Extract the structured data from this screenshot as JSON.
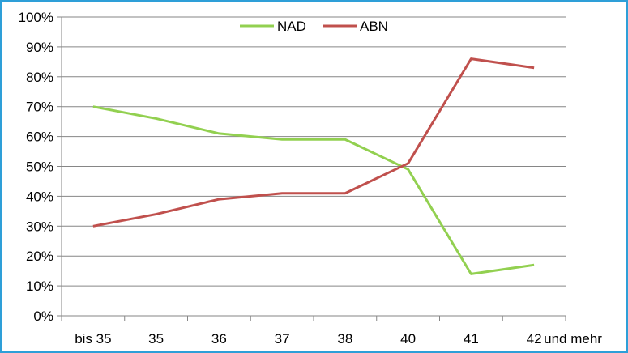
{
  "chart_data": {
    "type": "line",
    "categories": [
      "bis 35",
      "35",
      "36",
      "37",
      "38",
      "40",
      "41",
      "42"
    ],
    "x_tail_label": "und mehr",
    "ylim": [
      0,
      100
    ],
    "yticks": [
      0,
      10,
      20,
      30,
      40,
      50,
      60,
      70,
      80,
      90,
      100
    ],
    "ytick_labels": [
      "0%",
      "10%",
      "20%",
      "30%",
      "40%",
      "50%",
      "60%",
      "70%",
      "80%",
      "90%",
      "100%"
    ],
    "grid": true,
    "legend_position": "top",
    "series": [
      {
        "name": "NAD",
        "color": "#92d050",
        "values": [
          70,
          66,
          61,
          59,
          59,
          49,
          14,
          17
        ]
      },
      {
        "name": "ABN",
        "color": "#c0504d",
        "values": [
          30,
          34,
          39,
          41,
          41,
          51,
          86,
          83
        ]
      }
    ]
  }
}
